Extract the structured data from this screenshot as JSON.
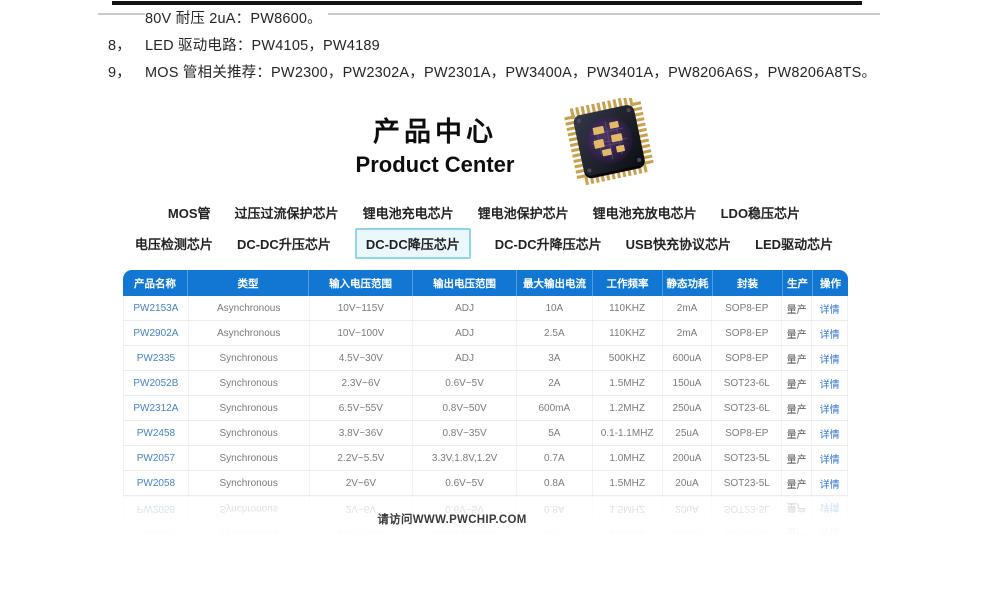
{
  "document": {
    "lines": [
      {
        "num": "",
        "text": "80V 耐压 2uA：PW8600。"
      },
      {
        "num": "8，",
        "text": "LED 驱动电路：PW4105，PW4189"
      },
      {
        "num": "9，",
        "text": "MOS 管相关推荐：PW2300，PW2302A，PW2301A，PW3400A，PW3401A，PW8206A6S，PW8206A8TS。"
      }
    ]
  },
  "product_center": {
    "title_zh": "产品中心",
    "title_en": "Product Center",
    "chip_icon": "chip-package-photo",
    "nav_row1": [
      "MOS管",
      "过压过流保护芯片",
      "锂电池充电芯片",
      "锂电池保护芯片",
      "锂电池充放电芯片",
      "LDO稳压芯片"
    ],
    "nav_row2": [
      "电压检测芯片",
      "DC-DC升压芯片",
      "DC-DC降压芯片",
      "DC-DC升降压芯片",
      "USB快充协议芯片",
      "LED驱动芯片"
    ],
    "active_tab": "DC-DC降压芯片",
    "table": {
      "headers": [
        "产品名称",
        "类型",
        "输入电压范围",
        "输出电压范围",
        "最大输出电流",
        "工作频率",
        "静态功耗",
        "封装",
        "生产",
        "操作"
      ],
      "rows": [
        [
          "PW2153A",
          "Asynchronous",
          "10V~115V",
          "ADJ",
          "10A",
          "110KHZ",
          "2mA",
          "SOP8-EP",
          "量产",
          "详情"
        ],
        [
          "PW2902A",
          "Asynchronous",
          "10V~100V",
          "ADJ",
          "2.5A",
          "110KHZ",
          "2mA",
          "SOP8-EP",
          "量产",
          "详情"
        ],
        [
          "PW2335",
          "Synchronous",
          "4.5V~30V",
          "ADJ",
          "3A",
          "500KHZ",
          "600uA",
          "SOP8-EP",
          "量产",
          "详情"
        ],
        [
          "PW2052B",
          "Synchronous",
          "2.3V~6V",
          "0.6V~5V",
          "2A",
          "1.5MHZ",
          "150uA",
          "SOT23-6L",
          "量产",
          "详情"
        ],
        [
          "PW2312A",
          "Synchronous",
          "6.5V~55V",
          "0.8V~50V",
          "600mA",
          "1.2MHZ",
          "250uA",
          "SOT23-6L",
          "量产",
          "详情"
        ],
        [
          "PW2458",
          "Synchronous",
          "3.8V~36V",
          "0.8V~35V",
          "5A",
          "0.1-1.1MHZ",
          "25uA",
          "SOP8-EP",
          "量产",
          "详情"
        ],
        [
          "PW2057",
          "Synchronous",
          "2.2V~5.5V",
          "3.3V,1.8V,1.2V",
          "0.7A",
          "1.0MHZ",
          "200uA",
          "SOT23-5L",
          "量产",
          "详情"
        ],
        [
          "PW2058",
          "Synchronous",
          "2V~6V",
          "0.6V~5V",
          "0.8A",
          "1.5MHZ",
          "20uA",
          "SOT23-5L",
          "量产",
          "详情"
        ]
      ]
    },
    "footer": "请访问WWW.PWCHIP.COM"
  },
  "colors": {
    "table_header_bg": "#1277d2",
    "product_link": "#4583c6",
    "detail_link": "#2f74d6",
    "active_tab_bg": "#eaf7fd",
    "active_tab_border": "#8fd4ea",
    "row_divider": "#ececec",
    "doc_text": "#262626"
  }
}
